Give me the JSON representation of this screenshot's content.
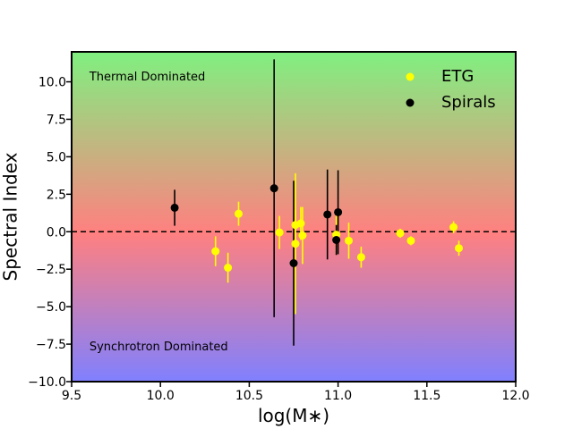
{
  "chart_data": {
    "type": "scatter",
    "title": "",
    "xlabel": "log(M∗)",
    "ylabel": "Spectral Index",
    "xlim": [
      9.5,
      12.0
    ],
    "ylim": [
      -10.0,
      12.0
    ],
    "xticks": [
      9.5,
      10.0,
      10.5,
      11.0,
      11.5,
      12.0
    ],
    "xtick_labels": [
      "9.5",
      "10.0",
      "10.5",
      "11.0",
      "11.5",
      "12.0"
    ],
    "yticks": [
      -10.0,
      -7.5,
      -5.0,
      -2.5,
      0.0,
      2.5,
      5.0,
      7.5,
      10.0
    ],
    "ytick_labels": [
      "−10.0",
      "−7.5",
      "−5.0",
      "−2.5",
      "0.0",
      "2.5",
      "5.0",
      "7.5",
      "10.0"
    ],
    "grid": false,
    "legend_position": "top-right",
    "reference_line": {
      "y": 0.0,
      "style": "dashed",
      "color": "#000000"
    },
    "background_gradient": {
      "top": "#80f080",
      "middle": "#ff8080",
      "bottom": "#8080ff"
    },
    "annotations": [
      {
        "text": "Thermal Dominated",
        "x": 9.6,
        "y": 10.1
      },
      {
        "text": "Synchrotron Dominated",
        "x": 9.6,
        "y": -7.9
      }
    ],
    "series": [
      {
        "name": "ETG",
        "color": "#ffff00",
        "points": [
          {
            "x": 10.31,
            "y": -1.3,
            "err": 1.0
          },
          {
            "x": 10.38,
            "y": -2.4,
            "err": 1.0
          },
          {
            "x": 10.44,
            "y": 1.2,
            "err": 0.8
          },
          {
            "x": 10.67,
            "y": -0.05,
            "err": 1.1
          },
          {
            "x": 10.76,
            "y": -0.8,
            "err": 4.7
          },
          {
            "x": 10.76,
            "y": 0.45,
            "err": 1.0
          },
          {
            "x": 10.79,
            "y": 0.55,
            "err": 1.1
          },
          {
            "x": 10.8,
            "y": -0.25,
            "err": 1.9
          },
          {
            "x": 10.99,
            "y": -0.2,
            "err": 1.3
          },
          {
            "x": 11.06,
            "y": -0.6,
            "err": 1.2
          },
          {
            "x": 11.13,
            "y": -1.7,
            "err": 0.7
          },
          {
            "x": 11.35,
            "y": -0.1,
            "err": 0.3
          },
          {
            "x": 11.41,
            "y": -0.6,
            "err": 0.3
          },
          {
            "x": 11.65,
            "y": 0.3,
            "err": 0.4
          },
          {
            "x": 11.68,
            "y": -1.1,
            "err": 0.5
          }
        ]
      },
      {
        "name": "Spirals",
        "color": "#000000",
        "points": [
          {
            "x": 10.08,
            "y": 1.6,
            "err": 1.2
          },
          {
            "x": 10.64,
            "y": 2.9,
            "err": 8.6
          },
          {
            "x": 10.75,
            "y": -2.1,
            "err": 5.5
          },
          {
            "x": 10.94,
            "y": 1.15,
            "err": 3.0
          },
          {
            "x": 10.99,
            "y": -0.55,
            "err": 1.0
          },
          {
            "x": 11.0,
            "y": 1.3,
            "err": 2.8
          }
        ]
      }
    ]
  }
}
